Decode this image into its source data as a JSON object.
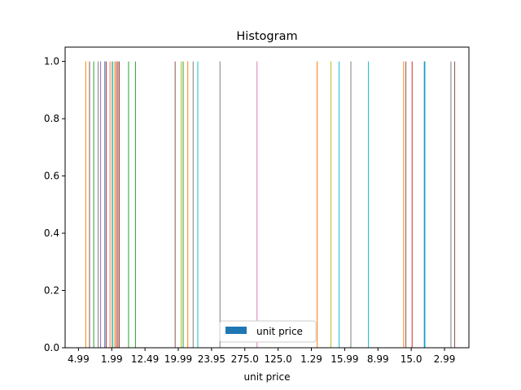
{
  "chart_data": {
    "type": "bar",
    "title": "Histogram",
    "xlabel": "unit price",
    "ylabel": "",
    "ylim": [
      0,
      1.05
    ],
    "yticks": [
      "0.0",
      "0.2",
      "0.4",
      "0.6",
      "0.8",
      "1.0"
    ],
    "xtick_labels": [
      "4.99",
      "1.99",
      "12.49",
      "19.99",
      "23.95",
      "275.0",
      "125.0",
      "1.29",
      "15.99",
      "8.99",
      "15.0",
      "2.99"
    ],
    "legend": {
      "label": "unit price",
      "placement": "lower-center"
    },
    "grid": false,
    "series": [
      {
        "count_value": 1.0,
        "bars": [
          {
            "x": 0.33,
            "color": "#ff7f0e"
          },
          {
            "x": 0.5,
            "color": "#8c564b"
          },
          {
            "x": 0.69,
            "color": "#2ca02c"
          },
          {
            "x": 0.89,
            "color": "#7f7f7f"
          },
          {
            "x": 1.0,
            "color": "#9467bd"
          },
          {
            "x": 1.19,
            "color": "#1f77b4"
          },
          {
            "x": 1.25,
            "color": "#d62728"
          },
          {
            "x": 1.42,
            "color": "#e377c2"
          },
          {
            "x": 1.5,
            "color": "#bcbd22"
          },
          {
            "x": 1.55,
            "color": "#17becf"
          },
          {
            "x": 1.64,
            "color": "#ff7f0e"
          },
          {
            "x": 1.71,
            "color": "#8c564b"
          },
          {
            "x": 1.78,
            "color": "#d62728"
          },
          {
            "x": 1.84,
            "color": "#8c564b"
          },
          {
            "x": 2.26,
            "color": "#2ca02c"
          },
          {
            "x": 2.57,
            "color": "#2ca02c"
          },
          {
            "x": 4.36,
            "color": "#8c564b"
          },
          {
            "x": 4.63,
            "color": "#bcbd22"
          },
          {
            "x": 4.72,
            "color": "#2ca02c"
          },
          {
            "x": 4.93,
            "color": "#ff7f0e"
          },
          {
            "x": 5.17,
            "color": "#7f7f7f"
          },
          {
            "x": 5.38,
            "color": "#17becf"
          },
          {
            "x": 6.38,
            "color": "#7f7f7f"
          },
          {
            "x": 8.05,
            "color": "#e377c2"
          },
          {
            "x": 10.76,
            "color": "#ff7f0e"
          },
          {
            "x": 11.38,
            "color": "#bcbd22"
          },
          {
            "x": 11.75,
            "color": "#17becf"
          },
          {
            "x": 12.28,
            "color": "#7f7f7f"
          },
          {
            "x": 13.07,
            "color": "#17becf"
          },
          {
            "x": 14.66,
            "color": "#ff7f0e"
          },
          {
            "x": 14.76,
            "color": "#8c564b"
          },
          {
            "x": 15.04,
            "color": "#d62728"
          },
          {
            "x": 15.59,
            "color": "#1f77b4"
          },
          {
            "x": 15.62,
            "color": "#17becf"
          },
          {
            "x": 16.79,
            "color": "#7f7f7f"
          },
          {
            "x": 16.96,
            "color": "#8c564b"
          }
        ]
      }
    ]
  }
}
